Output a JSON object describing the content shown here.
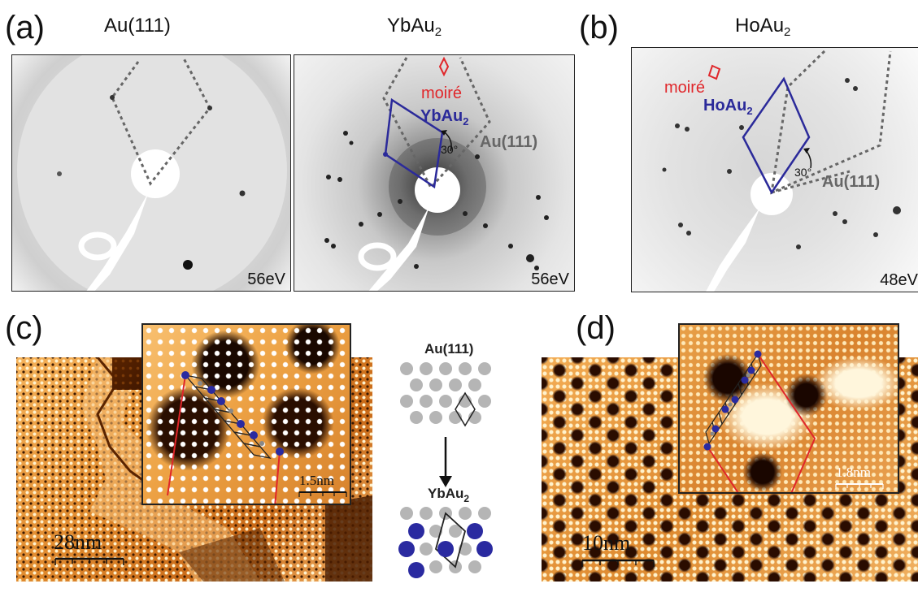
{
  "panels": {
    "a": {
      "letter": "(a)",
      "left_title": "Au(111)",
      "right_title_main": "YbAu",
      "right_title_sub": "2",
      "left_energy": "56eV",
      "right_energy": "56eV",
      "moire_label": "moiré",
      "lattice_label_main": "YbAu",
      "lattice_label_sub": "2",
      "substrate_label": "Au(111)",
      "angle_label": "30°"
    },
    "b": {
      "letter": "(b)",
      "title_main": "HoAu",
      "title_sub": "2",
      "energy": "48eV",
      "moire_label": "moiré",
      "lattice_label_main": "HoAu",
      "lattice_label_sub": "2",
      "substrate_label": "Au(111)",
      "angle_label": "30°"
    },
    "c": {
      "letter": "(c)",
      "scale_main": "28nm",
      "scale_inset": "1.5nm",
      "model_top": "Au(111)",
      "model_bottom_main": "YbAu",
      "model_bottom_sub": "2"
    },
    "d": {
      "letter": "(d)",
      "scale_main": "10nm",
      "scale_inset": "1.8nm"
    }
  },
  "colors": {
    "lattice_blue": "#2b2a9a",
    "moire_red": "#e0262a",
    "substrate_gray": "#666666",
    "model_gray": "#b5b5b5",
    "model_blue": "#2a2aa0"
  }
}
